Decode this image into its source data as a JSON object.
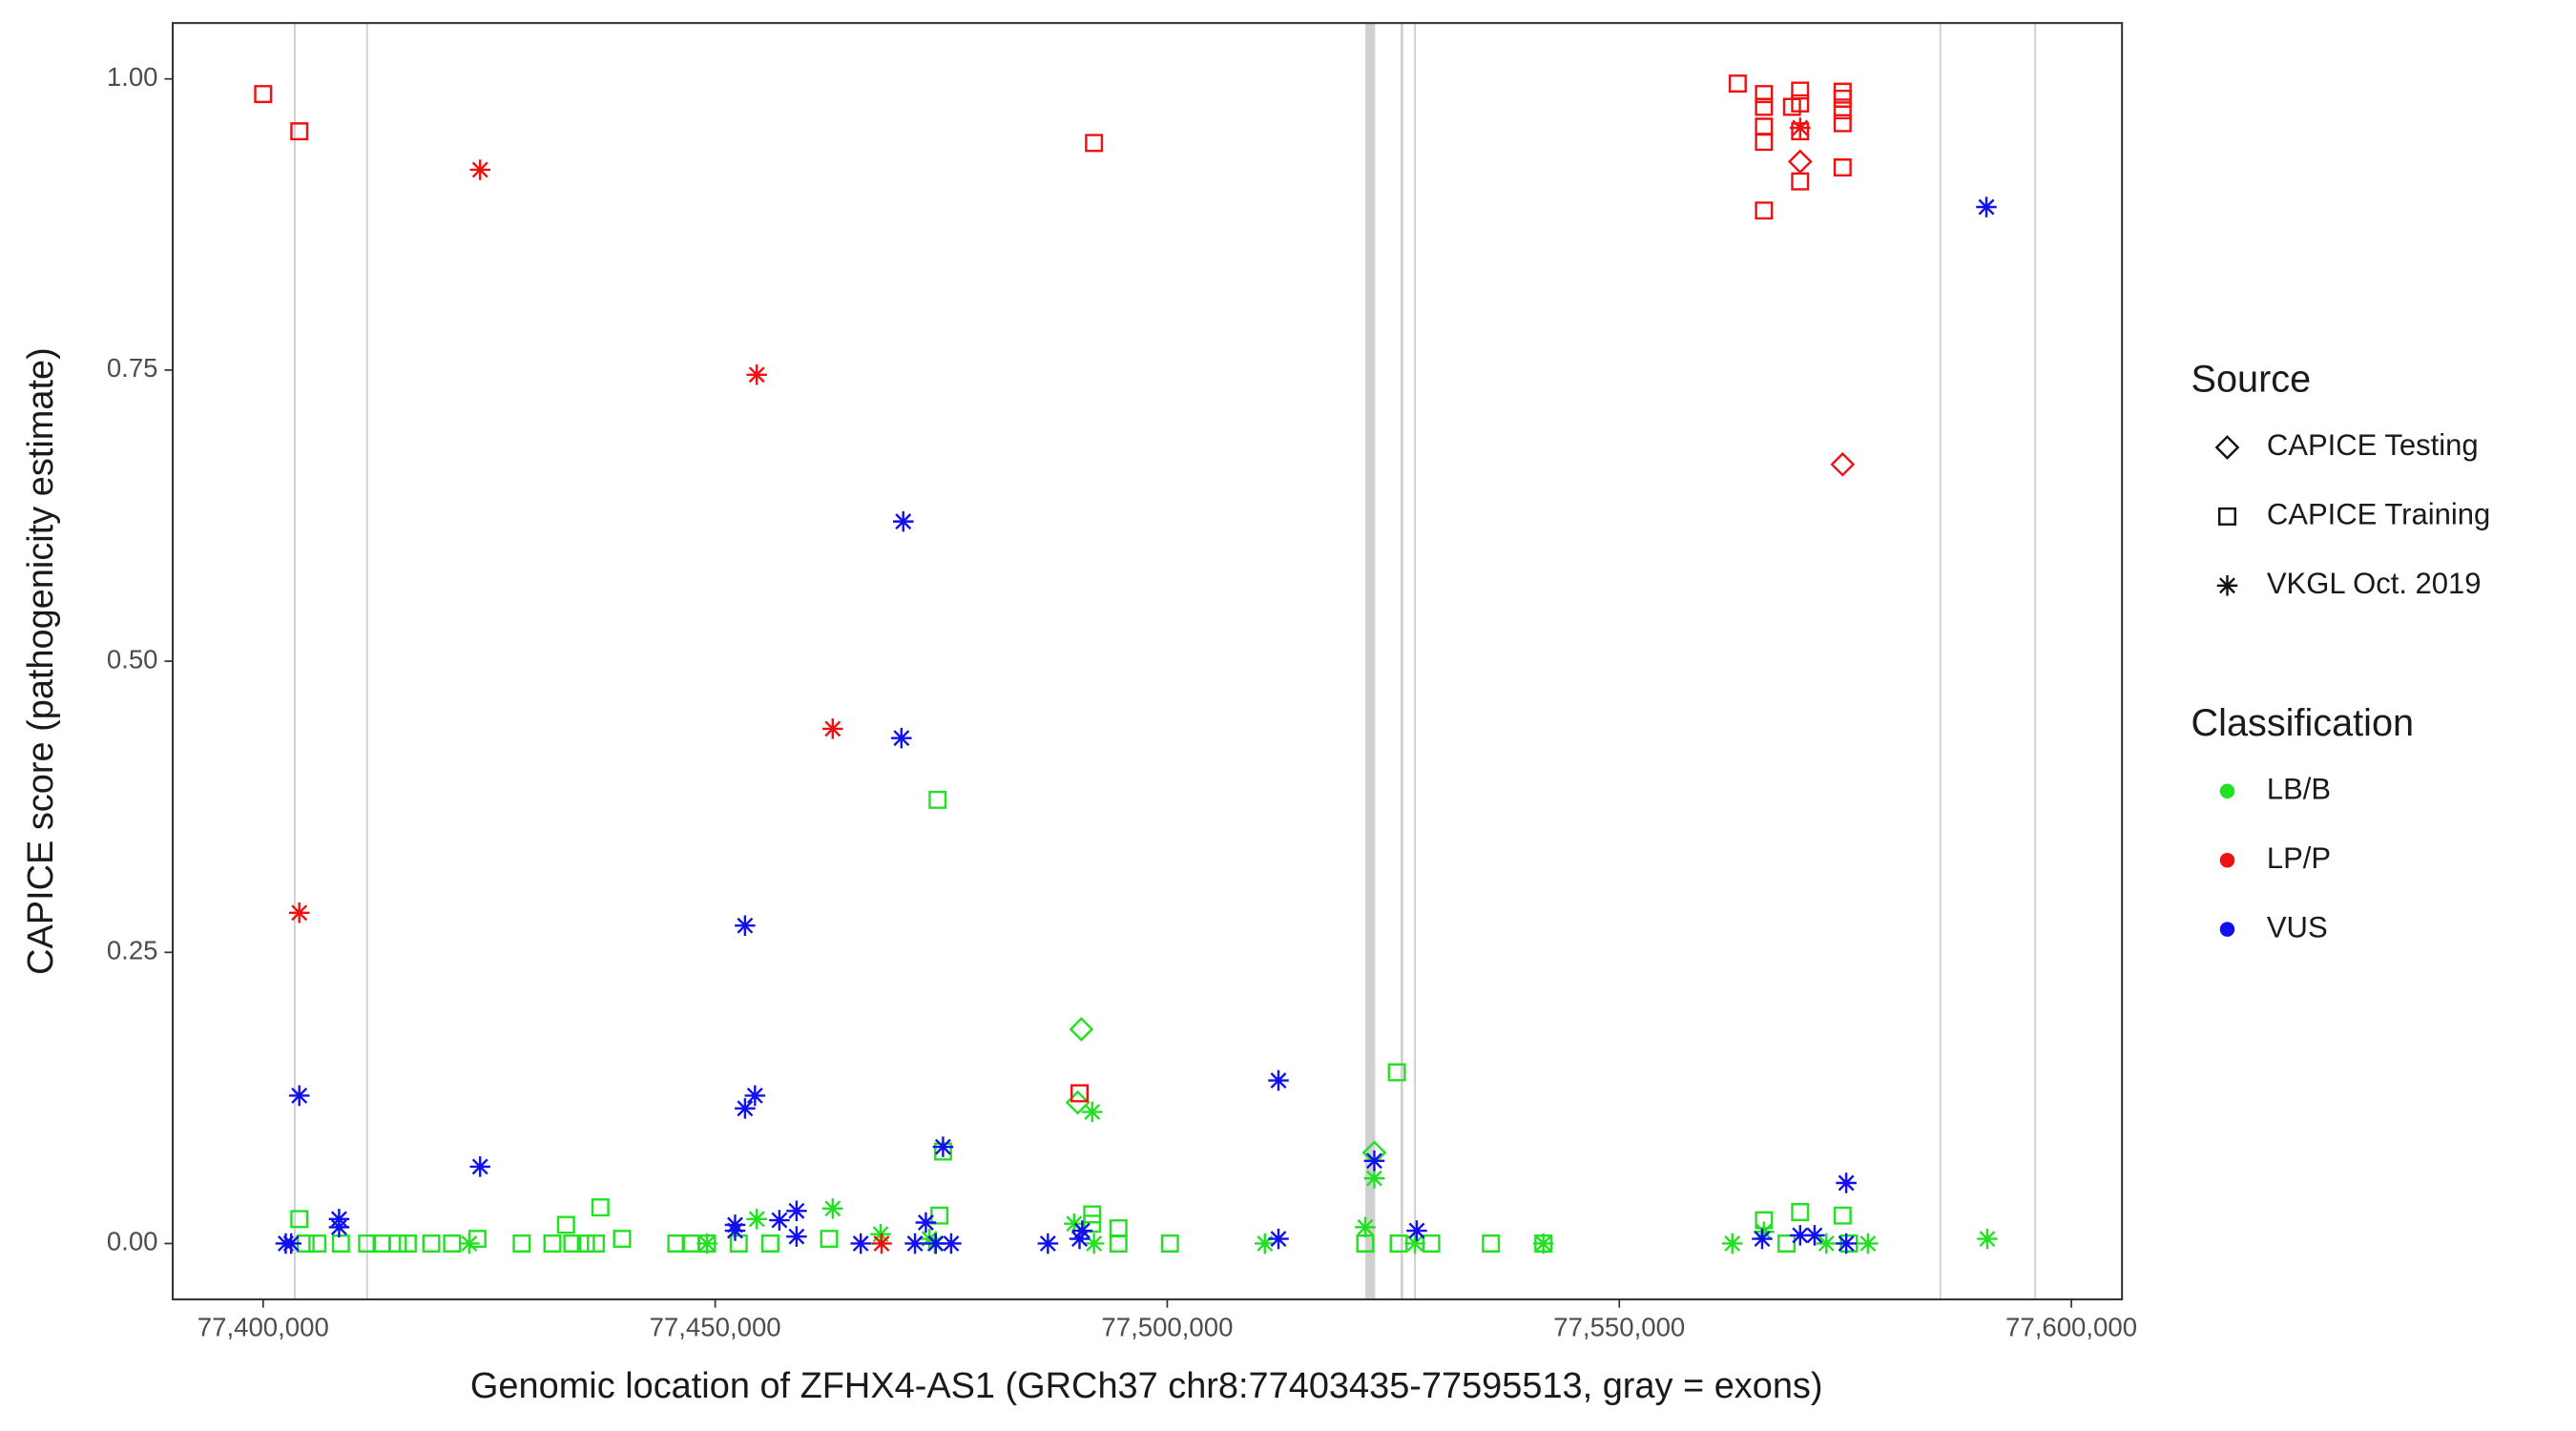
{
  "chart_data": {
    "type": "scatter",
    "x_label": "Genomic location of ZFHX4-AS1 (GRCh37 chr8:77403435-77595513, gray = exons)",
    "y_label": "CAPICE score (pathogenicity estimate)",
    "xlim": [
      77390000,
      77605600
    ],
    "ylim": [
      -0.048,
      1.048
    ],
    "xticks": [
      {
        "value": 77400000,
        "label": "77,400,000"
      },
      {
        "value": 77450000,
        "label": "77,450,000"
      },
      {
        "value": 77500000,
        "label": "77,500,000"
      },
      {
        "value": 77550000,
        "label": "77,550,000"
      },
      {
        "value": 77600000,
        "label": "77,600,000"
      }
    ],
    "yticks": [
      {
        "value": 0,
        "label": "0.00"
      },
      {
        "value": 0.25,
        "label": "0.25"
      },
      {
        "value": 0.5,
        "label": "0.50"
      },
      {
        "value": 0.75,
        "label": "0.75"
      },
      {
        "value": 1,
        "label": "1.00"
      }
    ],
    "exons": [
      [
        77403400,
        77403600
      ],
      [
        77411400,
        77411600
      ],
      [
        77521900,
        77523000
      ],
      [
        77525800,
        77526100
      ],
      [
        77527300,
        77527500
      ],
      [
        77585400,
        77585600
      ],
      [
        77595900,
        77596100
      ]
    ],
    "exon_color": "#c8c8c8",
    "source_title": "Source",
    "sources": [
      {
        "name": "CAPICE Testing",
        "shape": "diamond"
      },
      {
        "name": "CAPICE Training",
        "shape": "square"
      },
      {
        "name": "VKGL Oct. 2019",
        "shape": "asterisk"
      }
    ],
    "classification_title": "Classification",
    "series": [
      {
        "name": "LB/B",
        "color": "#22e022",
        "x": [
          77404000,
          77404700,
          77406000,
          77408600,
          77411500,
          77413100,
          77414900,
          77416000,
          77418600,
          77420900,
          77423700,
          77428600,
          77432000,
          77433500,
          77434200,
          77435700,
          77436800,
          77437300,
          77439700,
          77445700,
          77447300,
          77449100,
          77452600,
          77456100,
          77462600,
          77474600,
          77474800,
          77475200,
          77491700,
          77491700,
          77494600,
          77494600,
          77500300,
          77525400,
          77529200,
          77535800,
          77541600,
          77566000,
          77570000,
          77574700,
          77575400,
          77568500,
          77525600,
          77521900,
          77490500,
          77490100,
          77522900,
          77422800,
          77449100,
          77454600,
          77463000,
          77468300,
          77473700,
          77474300,
          77489700,
          77491700,
          77491900,
          77510800,
          77521900,
          77522900,
          77527400,
          77541600,
          77562500,
          77566000,
          77572900,
          77577500,
          77590700
        ],
        "y": [
          0.021,
          0,
          0,
          0,
          0,
          0,
          0,
          0,
          0,
          0,
          0.004,
          0,
          0,
          0.016,
          0,
          0,
          0,
          0.031,
          0.004,
          0,
          0,
          0,
          0,
          0,
          0.004,
          0.381,
          0.024,
          0.079,
          0.025,
          0.017,
          0.013,
          0,
          0,
          0.147,
          0,
          0,
          0,
          0.02,
          0.027,
          0.024,
          0,
          0,
          0,
          0,
          0.184,
          0.121,
          0.078,
          0,
          0,
          0.021,
          0.03,
          0.008,
          0.004,
          0,
          0.017,
          0.113,
          0,
          0,
          0.014,
          0.056,
          0,
          0,
          0,
          0.01,
          0,
          0,
          0.004
        ],
        "shapes": [
          "square",
          "square",
          "square",
          "square",
          "square",
          "square",
          "square",
          "square",
          "square",
          "square",
          "square",
          "square",
          "square",
          "square",
          "square",
          "square",
          "square",
          "square",
          "square",
          "square",
          "square",
          "square",
          "square",
          "square",
          "square",
          "square",
          "square",
          "square",
          "square",
          "square",
          "square",
          "square",
          "square",
          "square",
          "square",
          "square",
          "square",
          "square",
          "square",
          "square",
          "square",
          "square",
          "square",
          "square",
          "diamond",
          "diamond",
          "diamond",
          "asterisk",
          "asterisk",
          "asterisk",
          "asterisk",
          "asterisk",
          "asterisk",
          "asterisk",
          "asterisk",
          "asterisk",
          "asterisk",
          "asterisk",
          "asterisk",
          "asterisk",
          "asterisk",
          "asterisk",
          "asterisk",
          "asterisk",
          "asterisk",
          "asterisk",
          "asterisk"
        ]
      },
      {
        "name": "LP/P",
        "color": "#ee1111",
        "x": [
          77400000,
          77404000,
          77491900,
          77563100,
          77566000,
          77566000,
          77566000,
          77566000,
          77566000,
          77569100,
          77570000,
          77570000,
          77570000,
          77570000,
          77574700,
          77574700,
          77574700,
          77574700,
          77574700,
          77490300,
          77570000,
          77574700,
          77424000,
          77454600,
          77404000,
          77463000,
          77570000,
          77468400
        ],
        "y": [
          0.987,
          0.955,
          0.945,
          0.996,
          0.987,
          0.976,
          0.959,
          0.946,
          0.887,
          0.976,
          0.99,
          0.979,
          0.955,
          0.912,
          0.989,
          0.983,
          0.973,
          0.962,
          0.924,
          0.129,
          0.929,
          0.669,
          0.922,
          0.746,
          0.284,
          0.442,
          0.958,
          0
        ],
        "shapes": [
          "square",
          "square",
          "square",
          "square",
          "square",
          "square",
          "square",
          "square",
          "square",
          "square",
          "square",
          "square",
          "square",
          "square",
          "square",
          "square",
          "square",
          "square",
          "square",
          "square",
          "diamond",
          "diamond",
          "asterisk",
          "asterisk",
          "asterisk",
          "asterisk",
          "asterisk",
          "asterisk"
        ]
      },
      {
        "name": "VUS",
        "color": "#1111ee",
        "x": [
          77590600,
          77470800,
          77470600,
          77453300,
          77404000,
          77424000,
          77453300,
          77454400,
          77475200,
          77512300,
          77522900,
          77575100,
          77402500,
          77403100,
          77408400,
          77408400,
          77452200,
          77452200,
          77457100,
          77459000,
          77459000,
          77466100,
          77472100,
          77473300,
          77474400,
          77476100,
          77486800,
          77490300,
          77490600,
          77512300,
          77527600,
          77565800,
          77570000,
          77571600,
          77575100
        ],
        "y": [
          0.89,
          0.62,
          0.434,
          0.273,
          0.127,
          0.066,
          0.116,
          0.127,
          0.083,
          0.14,
          0.071,
          0.052,
          0,
          0,
          0.021,
          0.014,
          0.016,
          0.011,
          0.02,
          0.028,
          0.006,
          0,
          0,
          0.018,
          0,
          0,
          0,
          0.004,
          0.011,
          0.004,
          0.011,
          0.004,
          0.007,
          0.007,
          0
        ],
        "shapes": [
          "asterisk",
          "asterisk",
          "asterisk",
          "asterisk",
          "asterisk",
          "asterisk",
          "asterisk",
          "asterisk",
          "asterisk",
          "asterisk",
          "asterisk",
          "asterisk",
          "asterisk",
          "asterisk",
          "asterisk",
          "asterisk",
          "asterisk",
          "asterisk",
          "asterisk",
          "asterisk",
          "asterisk",
          "asterisk",
          "asterisk",
          "asterisk",
          "asterisk",
          "asterisk",
          "asterisk",
          "asterisk",
          "asterisk",
          "asterisk",
          "asterisk",
          "asterisk",
          "asterisk",
          "asterisk",
          "asterisk"
        ]
      }
    ]
  }
}
